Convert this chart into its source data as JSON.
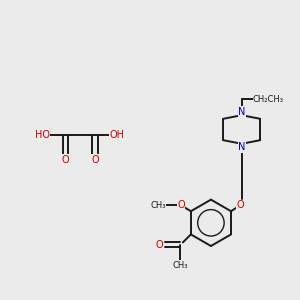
{
  "bg_color": "#ebebeb",
  "bond_color": "#1a1a1a",
  "O_color": "#cc0000",
  "N_color": "#0000bb",
  "figsize": [
    3.0,
    3.0
  ],
  "dpi": 100,
  "xlim": [
    0,
    10
  ],
  "ylim": [
    0,
    10
  ]
}
